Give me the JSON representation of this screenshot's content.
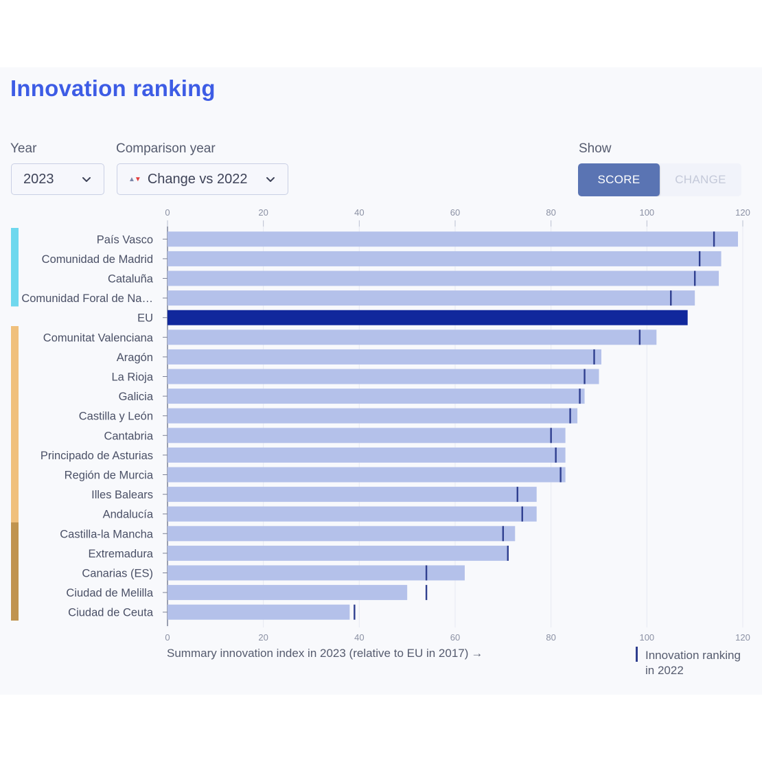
{
  "title": "Innovation ranking",
  "controls": {
    "year_label": "Year",
    "year_value": "2023",
    "comparison_label": "Comparison year",
    "comparison_value": "Change vs 2022",
    "show_label": "Show",
    "show_options": [
      "SCORE",
      "CHANGE"
    ],
    "show_selected": "SCORE"
  },
  "colors": {
    "title": "#3d5ce5",
    "bar": "#b4c1ea",
    "eu_bar": "#11289c",
    "marker": "#2f3f8f",
    "group_strong": "#6fd8ee",
    "group_moderate": "#f0c07c",
    "group_emerging": "#c0944f"
  },
  "icons": {
    "select_arrow": "chevron-down-icon",
    "change_indicator": "up-down-triangle-icon",
    "xaxis_arrow": "arrow-right-icon"
  },
  "chart_data": {
    "type": "bar",
    "orientation": "horizontal",
    "categories": [
      "País Vasco",
      "Comunidad de Madrid",
      "Cataluña",
      "Comunidad Foral de Na…",
      "EU",
      "Comunitat Valenciana",
      "Aragón",
      "La Rioja",
      "Galicia",
      "Castilla y León",
      "Cantabria",
      "Principado de Asturias",
      "Región de Murcia",
      "Illes Balears",
      "Andalucía",
      "Castilla-la Mancha",
      "Extremadura",
      "Canarias (ES)",
      "Ciudad de Melilla",
      "Ciudad de Ceuta"
    ],
    "series": [
      {
        "name": "Summary innovation index in 2023 (relative to EU in 2017)",
        "values": [
          119,
          115.5,
          115,
          110,
          108.5,
          102,
          90.5,
          90,
          87,
          85.5,
          83,
          83,
          83,
          77,
          77,
          72.5,
          71,
          62,
          50,
          38
        ]
      },
      {
        "name": "Innovation ranking in 2022",
        "values": [
          114,
          111,
          110,
          105,
          null,
          98.5,
          89,
          87,
          86,
          84,
          80,
          81,
          82,
          73,
          74,
          70,
          71,
          54,
          54,
          39
        ]
      }
    ],
    "groups": [
      {
        "color": "#6fd8ee",
        "from_index": 0,
        "to_index": 3
      },
      {
        "color": "#f0c07c",
        "from_index": 5,
        "to_index": 14
      },
      {
        "color": "#c0944f",
        "from_index": 15,
        "to_index": 19
      }
    ],
    "highlight_category": "EU",
    "xlim": [
      0,
      120
    ],
    "xticks": [
      0,
      20,
      40,
      60,
      80,
      100,
      120
    ],
    "xlabel": "Summary innovation index in 2023 (relative to EU in 2017)",
    "legend": {
      "marker_label": "Innovation ranking in 2022",
      "placement": "bottom-right"
    },
    "grid": true
  }
}
